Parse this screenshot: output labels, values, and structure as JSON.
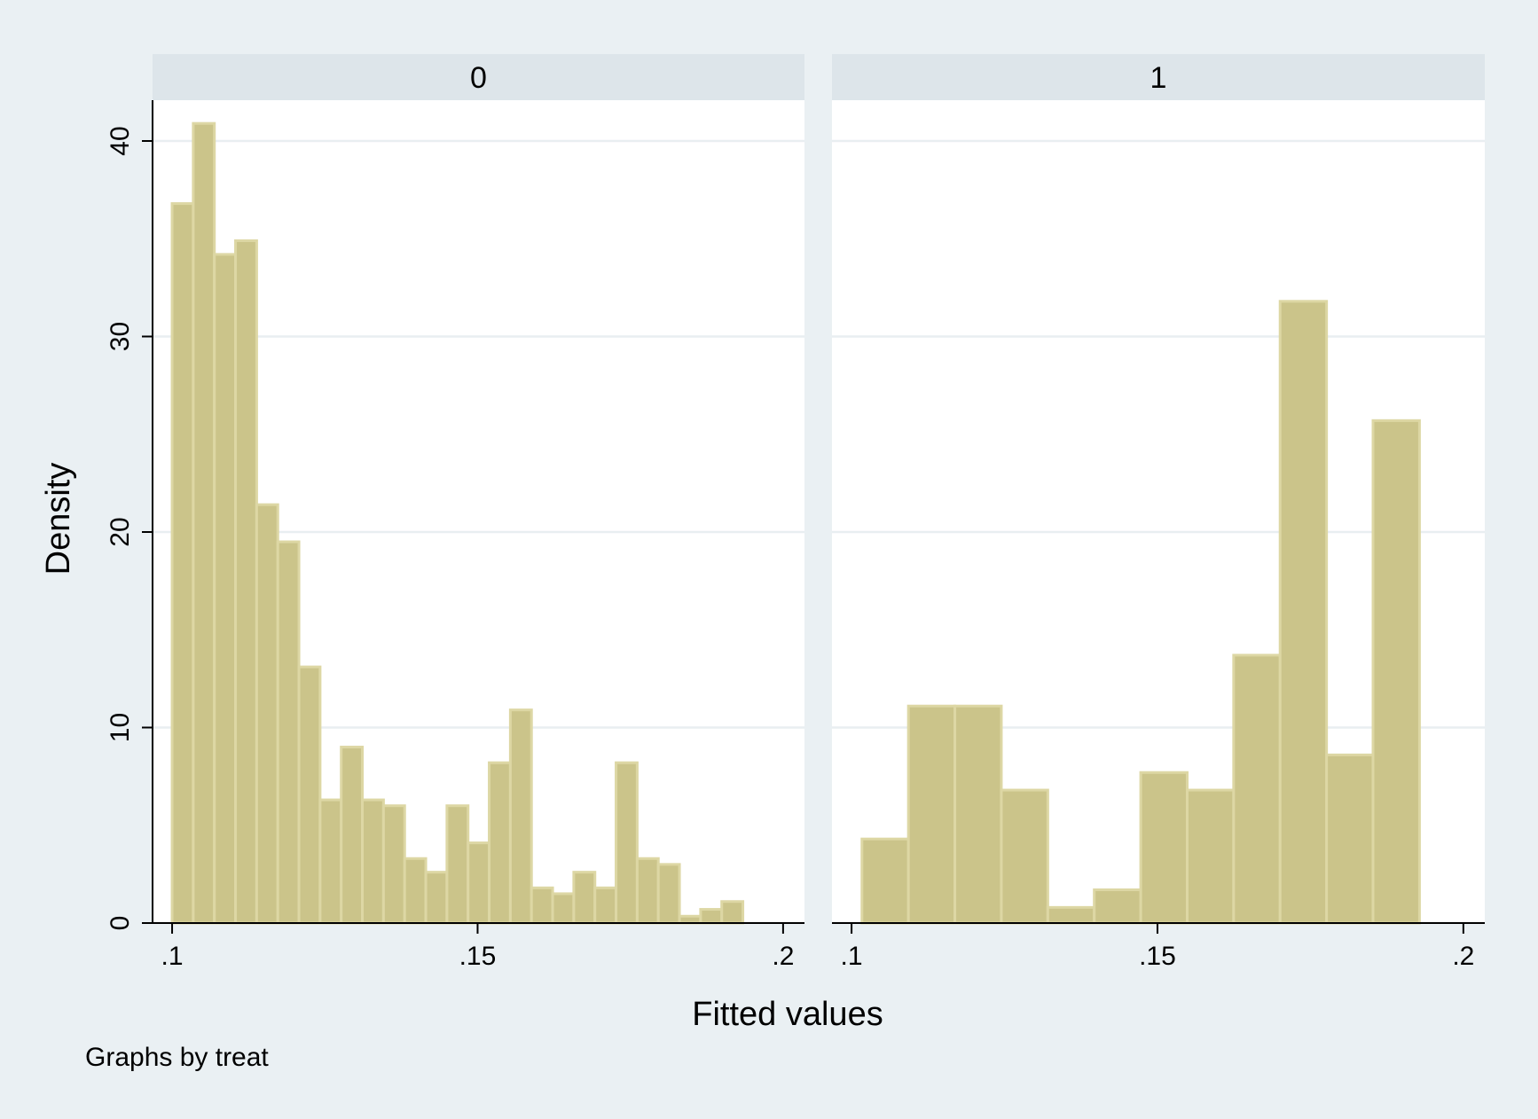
{
  "chart_data": {
    "type": "bar",
    "ylabel": "Density",
    "xlabel": "Fitted values",
    "note": "Graphs by treat",
    "ylim": [
      0,
      42
    ],
    "y_ticks": [
      0,
      10,
      20,
      30,
      40
    ],
    "y_tick_labels": [
      "0",
      "10",
      "20",
      "30",
      "40"
    ],
    "x_ticks": [
      0.1,
      0.15,
      0.2
    ],
    "x_tick_labels": [
      ".1",
      ".15",
      ".2"
    ],
    "xlim": [
      0.0968,
      0.2035
    ],
    "grid": true,
    "colors": {
      "bar_fill": "#cbc48a",
      "bar_edge": "#ddd7a4",
      "strip": "#dde5ea",
      "panel": "#ffffff",
      "background": "#eaf0f3",
      "gridline": "#e9eef1"
    },
    "panels": [
      {
        "title": "0",
        "bin_start": 0.1,
        "bin_width": 0.00346,
        "values": [
          36.8,
          40.9,
          34.2,
          34.9,
          21.4,
          19.5,
          13.1,
          6.3,
          9.0,
          6.3,
          6.0,
          3.3,
          2.6,
          6.0,
          4.1,
          8.2,
          10.9,
          1.8,
          1.5,
          2.6,
          1.8,
          8.2,
          3.3,
          3.0,
          0.35,
          0.7,
          1.1
        ]
      },
      {
        "title": "1",
        "bin_start": 0.1017,
        "bin_width": 0.007594,
        "values": [
          4.3,
          11.1,
          11.1,
          6.8,
          0.8,
          1.7,
          7.7,
          6.8,
          13.7,
          31.8,
          8.6,
          25.7
        ]
      }
    ]
  }
}
